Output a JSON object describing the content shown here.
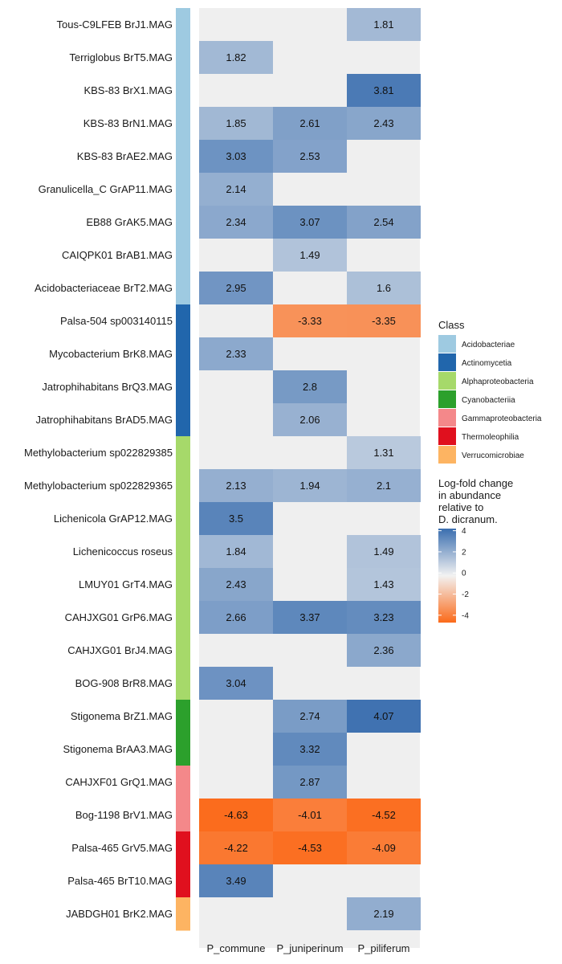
{
  "chart_data": {
    "type": "heatmap",
    "columns": [
      "P_commune",
      "P_juniperinum",
      "P_piliferum"
    ],
    "rows": [
      {
        "label": "Tous-C9LFEB BrJ1.MAG",
        "class": "Acidobacteriae",
        "values": [
          null,
          null,
          1.81
        ]
      },
      {
        "label": "Terriglobus BrT5.MAG",
        "class": "Acidobacteriae",
        "values": [
          1.82,
          null,
          null
        ]
      },
      {
        "label": "KBS-83 BrX1.MAG",
        "class": "Acidobacteriae",
        "values": [
          null,
          null,
          3.81
        ]
      },
      {
        "label": "KBS-83 BrN1.MAG",
        "class": "Acidobacteriae",
        "values": [
          1.85,
          2.61,
          2.43
        ]
      },
      {
        "label": "KBS-83 BrAE2.MAG",
        "class": "Acidobacteriae",
        "values": [
          3.03,
          2.53,
          null
        ]
      },
      {
        "label": "Granulicella_C GrAP11.MAG",
        "class": "Acidobacteriae",
        "values": [
          2.14,
          null,
          null
        ]
      },
      {
        "label": "EB88 GrAK5.MAG",
        "class": "Acidobacteriae",
        "values": [
          2.34,
          3.07,
          2.54
        ]
      },
      {
        "label": "CAIQPK01 BrAB1.MAG",
        "class": "Acidobacteriae",
        "values": [
          null,
          1.49,
          null
        ]
      },
      {
        "label": "Acidobacteriaceae BrT2.MAG",
        "class": "Acidobacteriae",
        "values": [
          2.95,
          null,
          1.6
        ]
      },
      {
        "label": "Palsa-504 sp003140115",
        "class": "Actinomycetia",
        "values": [
          null,
          -3.33,
          -3.35
        ]
      },
      {
        "label": "Mycobacterium BrK8.MAG",
        "class": "Actinomycetia",
        "values": [
          2.33,
          null,
          null
        ]
      },
      {
        "label": "Jatrophihabitans BrQ3.MAG",
        "class": "Actinomycetia",
        "values": [
          null,
          2.8,
          null
        ]
      },
      {
        "label": "Jatrophihabitans BrAD5.MAG",
        "class": "Actinomycetia",
        "values": [
          null,
          2.06,
          null
        ]
      },
      {
        "label": "Methylobacterium sp022829385",
        "class": "Alphaproteobacteria",
        "values": [
          null,
          null,
          1.31
        ]
      },
      {
        "label": "Methylobacterium sp022829365",
        "class": "Alphaproteobacteria",
        "values": [
          2.13,
          1.94,
          2.1
        ]
      },
      {
        "label": "Lichenicola GrAP12.MAG",
        "class": "Alphaproteobacteria",
        "values": [
          3.5,
          null,
          null
        ]
      },
      {
        "label": "Lichenicoccus roseus",
        "class": "Alphaproteobacteria",
        "values": [
          1.84,
          null,
          1.49
        ]
      },
      {
        "label": "LMUY01 GrT4.MAG",
        "class": "Alphaproteobacteria",
        "values": [
          2.43,
          null,
          1.43
        ]
      },
      {
        "label": "CAHJXG01 GrP6.MAG",
        "class": "Alphaproteobacteria",
        "values": [
          2.66,
          3.37,
          3.23
        ]
      },
      {
        "label": "CAHJXG01 BrJ4.MAG",
        "class": "Alphaproteobacteria",
        "values": [
          null,
          null,
          2.36
        ]
      },
      {
        "label": "BOG-908 BrR8.MAG",
        "class": "Alphaproteobacteria",
        "values": [
          3.04,
          null,
          null
        ]
      },
      {
        "label": "Stigonema BrZ1.MAG",
        "class": "Cyanobacteriia",
        "values": [
          null,
          2.74,
          4.07
        ]
      },
      {
        "label": "Stigonema BrAA3.MAG",
        "class": "Cyanobacteriia",
        "values": [
          null,
          3.32,
          null
        ]
      },
      {
        "label": "CAHJXF01 GrQ1.MAG",
        "class": "Gammaproteobacteria",
        "values": [
          null,
          2.87,
          null
        ]
      },
      {
        "label": "Bog-1198 BrV1.MAG",
        "class": "Gammaproteobacteria",
        "values": [
          -4.63,
          -4.01,
          -4.52
        ]
      },
      {
        "label": "Palsa-465 GrV5.MAG",
        "class": "Thermoleophilia",
        "values": [
          -4.22,
          -4.53,
          -4.09
        ]
      },
      {
        "label": "Palsa-465 BrT10.MAG",
        "class": "Thermoleophilia",
        "values": [
          3.49,
          null,
          null
        ]
      },
      {
        "label": "JABDGH01 BrK2.MAG",
        "class": "Verrucomicrobiae",
        "values": [
          null,
          null,
          2.19
        ]
      }
    ],
    "class_legend": {
      "title": "Class",
      "items": [
        {
          "name": "Acidobacteriae",
          "color": "#9ecae1"
        },
        {
          "name": "Actinomycetia",
          "color": "#2166ac"
        },
        {
          "name": "Alphaproteobacteria",
          "color": "#a6d96a"
        },
        {
          "name": "Cyanobacteriia",
          "color": "#2ca02c"
        },
        {
          "name": "Gammaproteobacteria",
          "color": "#f4888a"
        },
        {
          "name": "Thermoleophilia",
          "color": "#e0101e"
        },
        {
          "name": "Verrucomicrobiae",
          "color": "#fdb462"
        }
      ]
    },
    "colorbar": {
      "title": [
        "Log-fold change",
        "in abundance",
        "relative to",
        "D. dicranum."
      ],
      "range": [
        -4.7,
        4.2
      ],
      "ticks": [
        4,
        2,
        0,
        -2,
        -4
      ],
      "tick_labels": [
        "4",
        "2",
        "0",
        "-2",
        "-4"
      ],
      "colors": {
        "low": "#fb6a1a",
        "mid": "#f2f2f2",
        "high": "#3a6eaf"
      }
    },
    "na_color": "#efefef",
    "grid": false,
    "legend_position": "right"
  }
}
